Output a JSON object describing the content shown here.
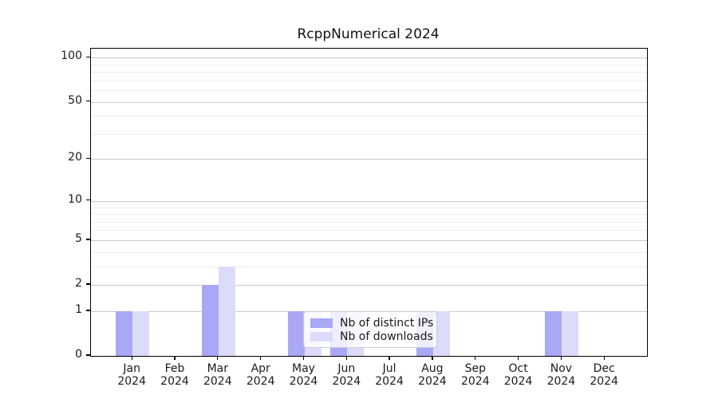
{
  "title": "RcppNumerical 2024",
  "colors": {
    "distinct_ips": "#a8a8f5",
    "downloads": "#dcdcfa",
    "grid_major": "#c9c9c9",
    "grid_minor": "#ededed",
    "axis": "#000000"
  },
  "chart_data": {
    "type": "bar",
    "title": "RcppNumerical 2024",
    "categories": [
      "Jan",
      "Feb",
      "Mar",
      "Apr",
      "May",
      "Jun",
      "Jul",
      "Aug",
      "Sep",
      "Oct",
      "Nov",
      "Dec"
    ],
    "category_year": "2024",
    "series": [
      {
        "name": "Nb of distinct IPs",
        "color": "#a8a8f5",
        "values": [
          1,
          0,
          2,
          0,
          1,
          1,
          0,
          1,
          0,
          0,
          1,
          0
        ]
      },
      {
        "name": "Nb of downloads",
        "color": "#dcdcfa",
        "values": [
          1,
          0,
          3,
          0,
          1,
          1,
          0,
          1,
          0,
          0,
          1,
          0
        ]
      }
    ],
    "xlabel": "",
    "ylabel": "",
    "yscale": "log1p",
    "ylim": [
      0,
      115
    ],
    "yticks": [
      0,
      1,
      2,
      5,
      10,
      20,
      50,
      100
    ],
    "minor_gridlines": [
      3,
      4,
      6,
      7,
      8,
      9,
      30,
      40,
      60,
      70,
      80,
      90
    ],
    "grid": true,
    "legend_position": "lower center"
  }
}
